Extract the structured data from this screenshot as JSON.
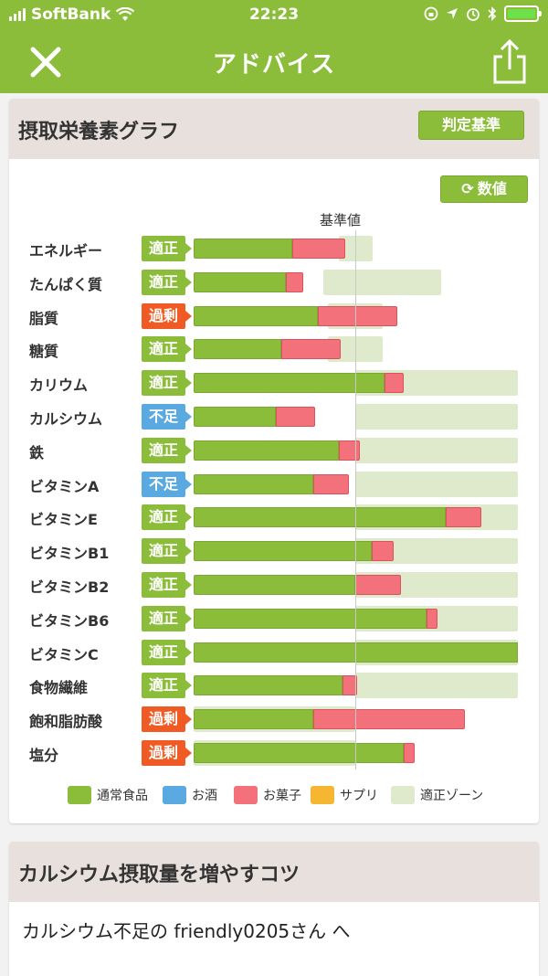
{
  "status_bar": {
    "carrier": "SoftBank",
    "time": "22:23"
  },
  "nav": {
    "title": "アドバイス",
    "close_icon": "close-icon",
    "share_icon": "share-icon"
  },
  "graph_card": {
    "title": "摂取栄養素グラフ",
    "criteria_button": "判定基準",
    "value_button": "数値",
    "reference_label": "基準値",
    "rows": [
      {
        "name": "エネルギー",
        "status": "適正",
        "food_pct": 0.61,
        "snack_pct": 0.33,
        "zone": [
          0.9,
          1.11
        ]
      },
      {
        "name": "たんぱく質",
        "status": "適正",
        "food_pct": 0.57,
        "snack_pct": 0.11,
        "zone": [
          0.8,
          1.53
        ]
      },
      {
        "name": "脂質",
        "status": "過剰",
        "food_pct": 0.77,
        "snack_pct": 0.49,
        "zone": [
          0.83,
          1.17
        ]
      },
      {
        "name": "糖質",
        "status": "適正",
        "food_pct": 0.54,
        "snack_pct": 0.37,
        "zone": [
          0.83,
          1.17
        ]
      },
      {
        "name": "カリウム",
        "status": "適正",
        "food_pct": 1.18,
        "snack_pct": 0.12,
        "zone": [
          1.0,
          2.01
        ]
      },
      {
        "name": "カルシウム",
        "status": "不足",
        "food_pct": 0.51,
        "snack_pct": 0.24,
        "zone": [
          1.0,
          2.01
        ]
      },
      {
        "name": "鉄",
        "status": "適正",
        "food_pct": 0.9,
        "snack_pct": 0.13,
        "zone": [
          1.0,
          2.01
        ]
      },
      {
        "name": "ビタミンA",
        "status": "不足",
        "food_pct": 0.74,
        "snack_pct": 0.22,
        "zone": [
          1.0,
          2.01
        ]
      },
      {
        "name": "ビタミンE",
        "status": "適正",
        "food_pct": 1.56,
        "snack_pct": 0.22,
        "zone": [
          1.0,
          2.01
        ]
      },
      {
        "name": "ビタミンB1",
        "status": "適正",
        "food_pct": 1.1,
        "snack_pct": 0.14,
        "zone": [
          1.0,
          2.01
        ]
      },
      {
        "name": "ビタミンB2",
        "status": "適正",
        "food_pct": 1.0,
        "snack_pct": 0.28,
        "zone": [
          1.0,
          2.01
        ]
      },
      {
        "name": "ビタミンB6",
        "status": "適正",
        "food_pct": 1.44,
        "snack_pct": 0.07,
        "zone": [
          1.0,
          2.01
        ]
      },
      {
        "name": "ビタミンC",
        "status": "適正",
        "food_pct": 2.01,
        "snack_pct": 0.0,
        "zone": [
          1.0,
          2.01
        ]
      },
      {
        "name": "食物繊維",
        "status": "適正",
        "food_pct": 0.92,
        "snack_pct": 0.09,
        "zone": [
          1.0,
          2.01
        ]
      },
      {
        "name": "飽和脂肪酸",
        "status": "過剰",
        "food_pct": 0.74,
        "snack_pct": 0.94,
        "zone": [
          0.0,
          1.0
        ]
      },
      {
        "name": "塩分",
        "status": "過剰",
        "food_pct": 1.3,
        "snack_pct": 0.07,
        "zone": [
          0.0,
          1.0
        ]
      }
    ],
    "legend": [
      {
        "label": "通常食品",
        "color": "#8cbd3a"
      },
      {
        "label": "お酒",
        "color": "#5aa9e0"
      },
      {
        "label": "お菓子",
        "color": "#f2717a"
      },
      {
        "label": "サプリ",
        "color": "#f5b731"
      },
      {
        "label": "適正ゾーン",
        "color": "#dfeacd"
      }
    ],
    "status_colors": {
      "適正": "#8cbd3a",
      "過剰": "#f05a24",
      "不足": "#5aa9e0"
    }
  },
  "tips_card": {
    "title": "カルシウム摂取量を増やすコツ",
    "body": "カルシウム不足の friendly0205さん へ"
  }
}
